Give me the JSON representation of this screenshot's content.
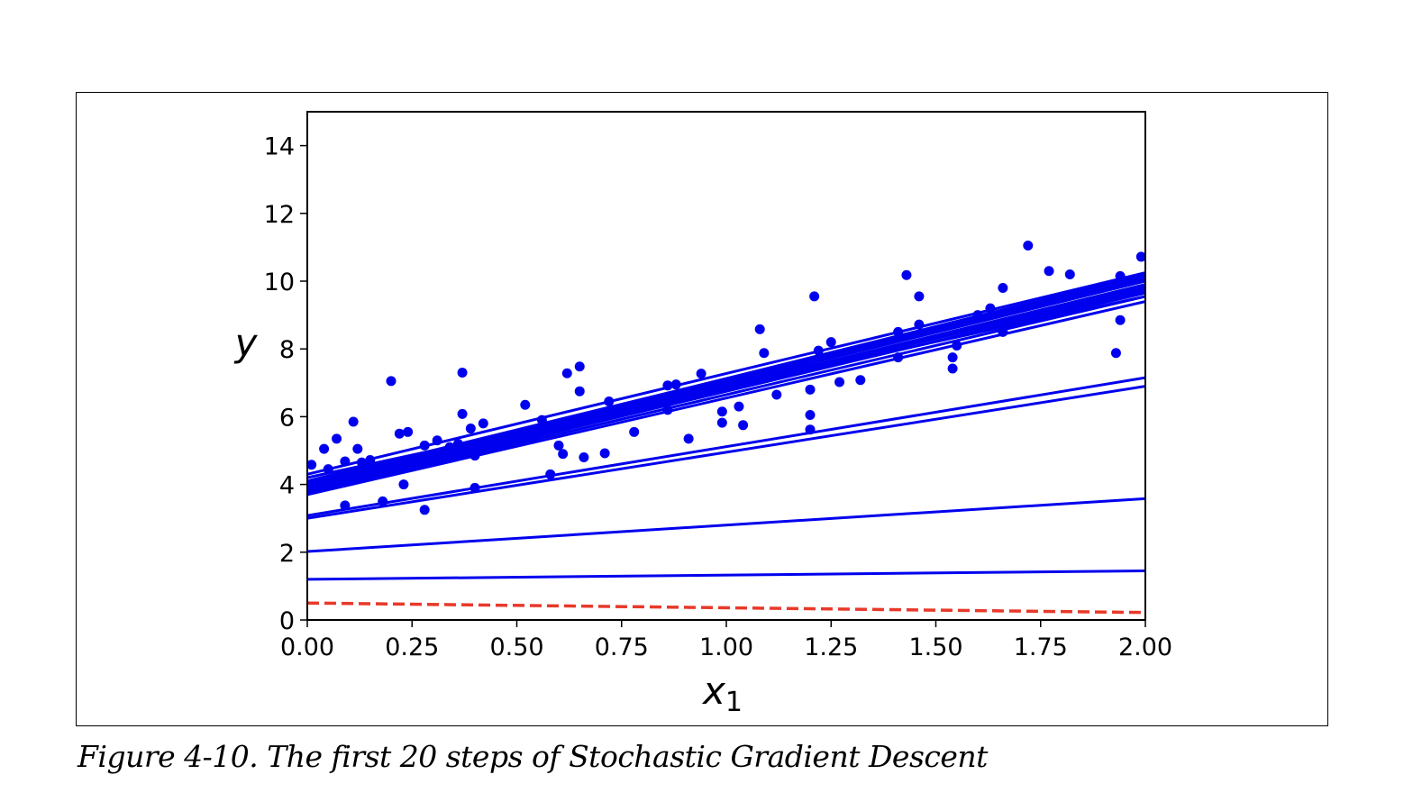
{
  "caption": "Figure 4-10. The first 20 steps of Stochastic Gradient Descent",
  "chart_data": {
    "type": "scatter",
    "xlabel": "x",
    "xlabel_subscript": "1",
    "ylabel": "y",
    "xlim": [
      0,
      2
    ],
    "ylim": [
      0,
      15
    ],
    "xticks": [
      "0.00",
      "0.25",
      "0.50",
      "0.75",
      "1.00",
      "1.25",
      "1.50",
      "1.75",
      "2.00"
    ],
    "yticks": [
      "0",
      "2",
      "4",
      "6",
      "8",
      "10",
      "12",
      "14"
    ],
    "xtick_values": [
      0,
      0.25,
      0.5,
      0.75,
      1.0,
      1.25,
      1.5,
      1.75,
      2.0
    ],
    "ytick_values": [
      0,
      2,
      4,
      6,
      8,
      10,
      12,
      14
    ],
    "grid": false,
    "colors": {
      "points": "#0000ee",
      "lines": "#0000ee",
      "initial_line": "#e8392a"
    },
    "initial_line": {
      "style": "dashed",
      "x": [
        0,
        2
      ],
      "y": [
        0.5,
        0.22
      ]
    },
    "sgd_lines": [
      {
        "x": [
          0,
          2
        ],
        "y": [
          1.2,
          1.45
        ]
      },
      {
        "x": [
          0,
          2
        ],
        "y": [
          2.02,
          3.58
        ]
      },
      {
        "x": [
          0,
          2
        ],
        "y": [
          3.0,
          6.9
        ]
      },
      {
        "x": [
          0,
          2
        ],
        "y": [
          3.08,
          7.15
        ]
      },
      {
        "x": [
          0,
          2
        ],
        "y": [
          3.7,
          9.4
        ]
      },
      {
        "x": [
          0,
          2
        ],
        "y": [
          3.75,
          9.55
        ]
      },
      {
        "x": [
          0,
          2
        ],
        "y": [
          3.8,
          9.7
        ]
      },
      {
        "x": [
          0,
          2
        ],
        "y": [
          3.85,
          9.8
        ]
      },
      {
        "x": [
          0,
          2
        ],
        "y": [
          3.9,
          9.9
        ]
      },
      {
        "x": [
          0,
          2
        ],
        "y": [
          3.95,
          10.0
        ]
      },
      {
        "x": [
          0,
          2
        ],
        "y": [
          4.0,
          10.1
        ]
      },
      {
        "x": [
          0,
          2
        ],
        "y": [
          4.05,
          10.2
        ]
      },
      {
        "x": [
          0,
          2
        ],
        "y": [
          4.2,
          9.55
        ]
      },
      {
        "x": [
          0,
          2
        ],
        "y": [
          4.3,
          10.25
        ]
      },
      {
        "x": [
          0,
          2
        ],
        "y": [
          3.82,
          9.9
        ]
      },
      {
        "x": [
          0,
          2
        ],
        "y": [
          3.88,
          10.05
        ]
      },
      {
        "x": [
          0,
          2
        ],
        "y": [
          3.92,
          9.65
        ]
      },
      {
        "x": [
          0,
          2
        ],
        "y": [
          4.1,
          10.15
        ]
      },
      {
        "x": [
          0,
          2
        ],
        "y": [
          3.78,
          9.85
        ]
      },
      {
        "x": [
          0,
          2
        ],
        "y": [
          3.98,
          9.75
        ]
      }
    ],
    "points": [
      [
        0.01,
        4.58
      ],
      [
        0.04,
        5.05
      ],
      [
        0.05,
        4.45
      ],
      [
        0.07,
        5.35
      ],
      [
        0.09,
        3.38
      ],
      [
        0.09,
        4.68
      ],
      [
        0.11,
        5.85
      ],
      [
        0.12,
        5.05
      ],
      [
        0.13,
        4.65
      ],
      [
        0.15,
        4.72
      ],
      [
        0.18,
        3.5
      ],
      [
        0.2,
        7.05
      ],
      [
        0.22,
        5.5
      ],
      [
        0.23,
        4.0
      ],
      [
        0.24,
        5.55
      ],
      [
        0.24,
        4.7
      ],
      [
        0.28,
        5.15
      ],
      [
        0.28,
        3.25
      ],
      [
        0.31,
        5.3
      ],
      [
        0.31,
        4.75
      ],
      [
        0.34,
        5.1
      ],
      [
        0.36,
        5.2
      ],
      [
        0.37,
        6.08
      ],
      [
        0.37,
        7.3
      ],
      [
        0.39,
        5.65
      ],
      [
        0.4,
        4.85
      ],
      [
        0.4,
        3.9
      ],
      [
        0.42,
        5.8
      ],
      [
        0.52,
        6.35
      ],
      [
        0.54,
        5.35
      ],
      [
        0.56,
        5.9
      ],
      [
        0.58,
        4.3
      ],
      [
        0.6,
        5.15
      ],
      [
        0.61,
        4.9
      ],
      [
        0.62,
        7.28
      ],
      [
        0.65,
        7.48
      ],
      [
        0.65,
        6.75
      ],
      [
        0.66,
        4.8
      ],
      [
        0.71,
        4.92
      ],
      [
        0.72,
        6.45
      ],
      [
        0.78,
        5.55
      ],
      [
        0.86,
        6.92
      ],
      [
        0.86,
        6.2
      ],
      [
        0.88,
        6.95
      ],
      [
        0.91,
        5.35
      ],
      [
        0.94,
        7.27
      ],
      [
        0.99,
        6.15
      ],
      [
        0.99,
        5.82
      ],
      [
        1.03,
        6.3
      ],
      [
        1.04,
        5.75
      ],
      [
        1.08,
        8.58
      ],
      [
        1.09,
        7.88
      ],
      [
        1.12,
        6.65
      ],
      [
        1.19,
        7.5
      ],
      [
        1.2,
        6.05
      ],
      [
        1.2,
        5.62
      ],
      [
        1.2,
        6.8
      ],
      [
        1.21,
        9.55
      ],
      [
        1.22,
        7.95
      ],
      [
        1.25,
        8.2
      ],
      [
        1.27,
        7.02
      ],
      [
        1.32,
        7.08
      ],
      [
        1.41,
        8.5
      ],
      [
        1.41,
        7.75
      ],
      [
        1.43,
        10.18
      ],
      [
        1.46,
        8.72
      ],
      [
        1.46,
        9.55
      ],
      [
        1.54,
        7.75
      ],
      [
        1.54,
        7.42
      ],
      [
        1.55,
        8.1
      ],
      [
        1.6,
        9.0
      ],
      [
        1.63,
        9.2
      ],
      [
        1.66,
        9.8
      ],
      [
        1.66,
        8.5
      ],
      [
        1.72,
        11.05
      ],
      [
        1.77,
        10.3
      ],
      [
        1.82,
        10.2
      ],
      [
        1.93,
        7.88
      ],
      [
        1.94,
        8.85
      ],
      [
        1.94,
        10.15
      ],
      [
        1.99,
        10.72
      ]
    ]
  }
}
